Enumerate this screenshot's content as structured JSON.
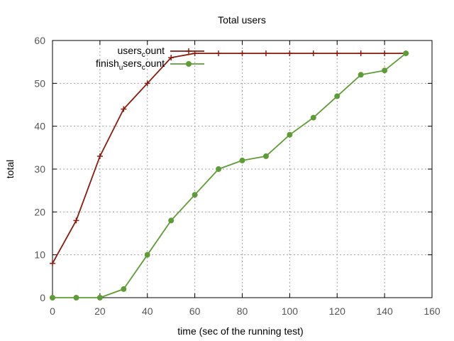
{
  "chart_data": {
    "type": "line",
    "title": "Total users",
    "xlabel": "time (sec of the running test)",
    "ylabel": "total",
    "xlim": [
      0,
      160
    ],
    "ylim": [
      0,
      60
    ],
    "xticks": [
      0,
      20,
      40,
      60,
      80,
      100,
      120,
      140,
      160
    ],
    "yticks": [
      0,
      10,
      20,
      30,
      40,
      50,
      60
    ],
    "grid": true,
    "legend_position": "top-left",
    "series": [
      {
        "name_parts": [
          {
            "text": "users",
            "sub": false
          },
          {
            "text": "c",
            "sub": true
          },
          {
            "text": "ount",
            "sub": false
          }
        ],
        "color": "#8b1a0e",
        "marker": "plus",
        "points": [
          [
            0,
            8
          ],
          [
            10,
            18
          ],
          [
            20,
            33
          ],
          [
            30,
            44
          ],
          [
            40,
            50
          ],
          [
            50,
            56
          ],
          [
            60,
            57
          ],
          [
            70,
            57
          ],
          [
            80,
            57
          ],
          [
            90,
            57
          ],
          [
            100,
            57
          ],
          [
            110,
            57
          ],
          [
            120,
            57
          ],
          [
            130,
            57
          ],
          [
            140,
            57
          ],
          [
            149,
            57
          ]
        ]
      },
      {
        "name_parts": [
          {
            "text": "finish",
            "sub": false
          },
          {
            "text": "u",
            "sub": true
          },
          {
            "text": "sers",
            "sub": false
          },
          {
            "text": "c",
            "sub": true
          },
          {
            "text": "ount",
            "sub": false
          }
        ],
        "color": "#5e9c36",
        "marker": "dot",
        "points": [
          [
            0,
            0
          ],
          [
            10,
            0
          ],
          [
            20,
            0
          ],
          [
            30,
            2
          ],
          [
            40,
            10
          ],
          [
            50,
            18
          ],
          [
            60,
            24
          ],
          [
            70,
            30
          ],
          [
            80,
            32
          ],
          [
            90,
            33
          ],
          [
            100,
            38
          ],
          [
            110,
            42
          ],
          [
            120,
            47
          ],
          [
            130,
            52
          ],
          [
            140,
            53
          ],
          [
            149,
            57
          ]
        ]
      }
    ]
  }
}
